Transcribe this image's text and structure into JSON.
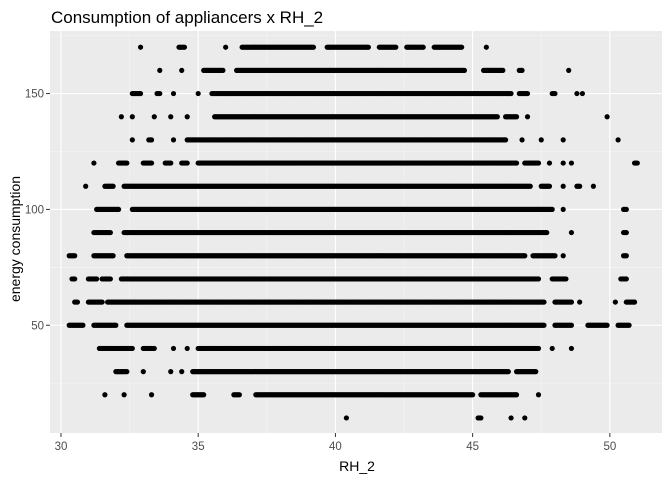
{
  "chart_data": {
    "type": "scatter",
    "title": "Consumption of appliancers x RH_2",
    "xlabel": "RH_2",
    "ylabel": "energy consumption",
    "xlim": [
      29.6,
      51.9
    ],
    "ylim": [
      3.5,
      177
    ],
    "x_ticks": [
      30,
      35,
      40,
      45,
      50
    ],
    "y_ticks": [
      50,
      100,
      150
    ],
    "grid": true,
    "legend": "none",
    "colors": {
      "panel": "#ebebeb",
      "grid_major": "#ffffff",
      "grid_minor": "#f5f5f5",
      "point": "#000000",
      "tick": "#4d4d4d"
    },
    "bands": [
      {
        "y": 10,
        "segments": [
          [
            40.4,
            40.4
          ],
          [
            45.2,
            45.3
          ],
          [
            46.4,
            46.4
          ],
          [
            46.9,
            46.9
          ]
        ]
      },
      {
        "y": 20,
        "segments": [
          [
            31.6,
            31.6
          ],
          [
            32.3,
            32.3
          ],
          [
            33.3,
            33.3
          ],
          [
            34.8,
            35.2
          ],
          [
            36.3,
            36.5
          ],
          [
            37.1,
            45.0
          ],
          [
            45.3,
            46.6
          ],
          [
            47.4,
            47.4
          ]
        ]
      },
      {
        "y": 30,
        "segments": [
          [
            32.0,
            32.4
          ],
          [
            33.0,
            33.0
          ],
          [
            34.0,
            34.0
          ],
          [
            34.4,
            34.4
          ],
          [
            34.8,
            46.3
          ],
          [
            46.6,
            47.3
          ]
        ]
      },
      {
        "y": 40,
        "segments": [
          [
            31.4,
            32.6
          ],
          [
            33.0,
            33.4
          ],
          [
            34.1,
            34.1
          ],
          [
            34.6,
            34.6
          ],
          [
            35.0,
            47.4
          ],
          [
            47.9,
            47.9
          ],
          [
            48.6,
            48.6
          ]
        ]
      },
      {
        "y": 50,
        "segments": [
          [
            30.3,
            30.8
          ],
          [
            31.2,
            32.0
          ],
          [
            32.4,
            47.6
          ],
          [
            48.0,
            48.6
          ],
          [
            49.2,
            49.9
          ],
          [
            50.3,
            50.7
          ]
        ]
      },
      {
        "y": 60,
        "segments": [
          [
            30.5,
            30.6
          ],
          [
            31.0,
            31.5
          ],
          [
            31.7,
            47.6
          ],
          [
            48.0,
            48.6
          ],
          [
            48.9,
            48.9
          ],
          [
            50.2,
            50.2
          ],
          [
            50.6,
            50.9
          ]
        ]
      },
      {
        "y": 70,
        "segments": [
          [
            30.4,
            30.5
          ],
          [
            31.0,
            31.3
          ],
          [
            31.5,
            31.8
          ],
          [
            32.2,
            47.4
          ],
          [
            47.9,
            48.4
          ],
          [
            50.4,
            50.6
          ]
        ]
      },
      {
        "y": 80,
        "segments": [
          [
            30.3,
            30.5
          ],
          [
            31.2,
            31.9
          ],
          [
            32.4,
            46.9
          ],
          [
            47.2,
            48.0
          ],
          [
            48.3,
            48.3
          ],
          [
            50.5,
            50.6
          ]
        ]
      },
      {
        "y": 90,
        "segments": [
          [
            31.2,
            31.8
          ],
          [
            32.3,
            47.7
          ],
          [
            48.6,
            48.6
          ],
          [
            50.5,
            50.6
          ]
        ]
      },
      {
        "y": 100,
        "segments": [
          [
            31.3,
            32.1
          ],
          [
            32.6,
            47.9
          ],
          [
            48.3,
            48.3
          ],
          [
            50.5,
            50.6
          ]
        ]
      },
      {
        "y": 110,
        "segments": [
          [
            30.9,
            30.9
          ],
          [
            31.6,
            31.9
          ],
          [
            32.3,
            47.1
          ],
          [
            47.5,
            47.8
          ],
          [
            48.3,
            48.3
          ],
          [
            48.8,
            48.9
          ],
          [
            49.4,
            49.4
          ]
        ]
      },
      {
        "y": 120,
        "segments": [
          [
            31.2,
            31.2
          ],
          [
            32.1,
            32.4
          ],
          [
            33.0,
            33.3
          ],
          [
            33.8,
            34.0
          ],
          [
            34.4,
            34.6
          ],
          [
            35.0,
            46.6
          ],
          [
            46.9,
            47.4
          ],
          [
            47.8,
            47.8
          ],
          [
            48.3,
            48.3
          ],
          [
            48.6,
            48.6
          ],
          [
            50.9,
            51.0
          ]
        ]
      },
      {
        "y": 130,
        "segments": [
          [
            32.6,
            32.6
          ],
          [
            33.2,
            33.3
          ],
          [
            34.1,
            34.1
          ],
          [
            34.6,
            46.2
          ],
          [
            46.8,
            46.8
          ],
          [
            47.5,
            47.5
          ],
          [
            48.3,
            48.3
          ],
          [
            50.3,
            50.3
          ]
        ]
      },
      {
        "y": 140,
        "segments": [
          [
            32.2,
            32.2
          ],
          [
            32.6,
            32.6
          ],
          [
            33.4,
            33.4
          ],
          [
            34.0,
            34.0
          ],
          [
            34.6,
            34.6
          ],
          [
            35.6,
            45.9
          ],
          [
            46.2,
            46.6
          ],
          [
            47.0,
            47.0
          ],
          [
            49.9,
            49.9
          ]
        ]
      },
      {
        "y": 150,
        "segments": [
          [
            32.6,
            32.9
          ],
          [
            33.5,
            33.6
          ],
          [
            34.1,
            34.1
          ],
          [
            35.0,
            35.0
          ],
          [
            35.5,
            46.4
          ],
          [
            46.7,
            47.0
          ],
          [
            47.9,
            48.0
          ],
          [
            48.8,
            48.8
          ],
          [
            49.0,
            49.0
          ]
        ]
      },
      {
        "y": 160,
        "segments": [
          [
            33.6,
            33.6
          ],
          [
            34.4,
            34.4
          ],
          [
            35.2,
            35.9
          ],
          [
            36.4,
            44.7
          ],
          [
            45.4,
            46.1
          ],
          [
            46.7,
            46.8
          ],
          [
            48.5,
            48.5
          ]
        ]
      },
      {
        "y": 170,
        "segments": [
          [
            32.9,
            32.9
          ],
          [
            34.3,
            34.5
          ],
          [
            36.0,
            36.0
          ],
          [
            36.6,
            39.2
          ],
          [
            39.7,
            41.2
          ],
          [
            41.6,
            42.2
          ],
          [
            42.6,
            43.2
          ],
          [
            43.6,
            44.6
          ],
          [
            45.5,
            45.5
          ]
        ]
      }
    ]
  }
}
